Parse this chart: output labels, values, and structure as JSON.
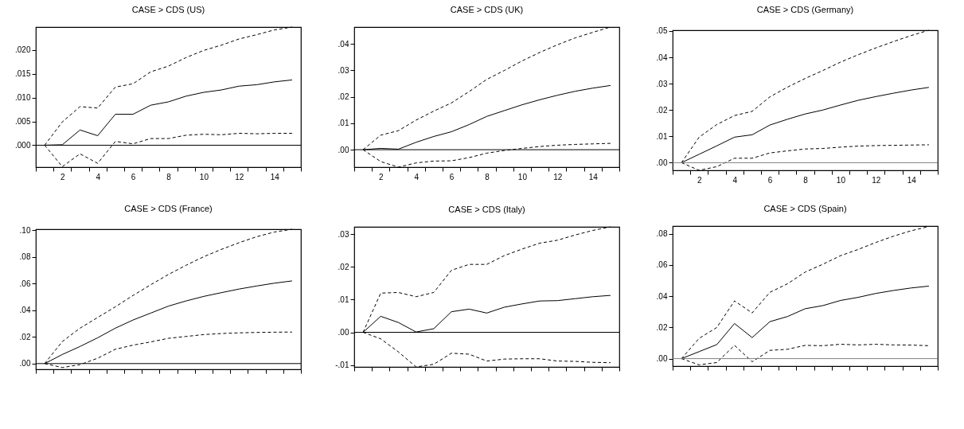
{
  "chart_data": [
    {
      "type": "line",
      "title": "CASE > CDS (US)",
      "x": [
        1,
        2,
        3,
        4,
        5,
        6,
        7,
        8,
        9,
        10,
        11,
        12,
        13,
        14,
        15
      ],
      "xlim": [
        0.5,
        15.5
      ],
      "xticks": [
        {
          "value": 0.5,
          "label": null
        },
        {
          "value": 1.5,
          "label": null
        },
        2,
        {
          "value": 2.5,
          "label": null
        },
        {
          "value": 3.5,
          "label": null
        },
        4,
        {
          "value": 4.5,
          "label": null
        },
        {
          "value": 5.5,
          "label": null
        },
        6,
        {
          "value": 6.5,
          "label": null
        },
        {
          "value": 7.5,
          "label": null
        },
        8,
        {
          "value": 8.5,
          "label": null
        },
        {
          "value": 9.5,
          "label": null
        },
        10,
        {
          "value": 10.5,
          "label": null
        },
        {
          "value": 11.5,
          "label": null
        },
        12,
        {
          "value": 12.5,
          "label": null
        },
        {
          "value": 13.5,
          "label": null
        },
        14,
        {
          "value": 14.5,
          "label": null
        },
        {
          "value": 15.5,
          "label": null
        }
      ],
      "ylim": [
        -0.0046,
        0.0248
      ],
      "yticks": [
        {
          "value": 0,
          "label": ".000"
        },
        {
          "value": 0.005,
          "label": ".005"
        },
        {
          "value": 0.01,
          "label": ".010"
        },
        {
          "value": 0.015,
          "label": ".015"
        },
        {
          "value": 0.02,
          "label": ".020"
        }
      ],
      "grid": false,
      "legend": false,
      "ref_lines": [
        {
          "axis": "y",
          "value": 0,
          "color": "#000000"
        }
      ],
      "series": [
        {
          "color": "#000000",
          "line_style": "solid",
          "values": [
            0,
            0.0001,
            0.0032,
            0.002,
            0.0065,
            0.0065,
            0.0084,
            0.0091,
            0.0103,
            0.0111,
            0.0116,
            0.0124,
            0.0127,
            0.0133,
            0.0137
          ]
        },
        {
          "color": "#000000",
          "line_style": "dashed",
          "values": [
            0,
            0.0049,
            0.0081,
            0.0078,
            0.0122,
            0.0129,
            0.0154,
            0.0166,
            0.0184,
            0.0199,
            0.021,
            0.0223,
            0.0232,
            0.0242,
            0.0248
          ]
        },
        {
          "color": "#000000",
          "line_style": "dashed",
          "values": [
            0,
            -0.0045,
            -0.0018,
            -0.0038,
            0.0008,
            0.0003,
            0.0014,
            0.0014,
            0.0021,
            0.0023,
            0.0022,
            0.0025,
            0.0024,
            0.0025,
            0.0025
          ]
        }
      ]
    },
    {
      "type": "line",
      "title": "CASE > CDS (UK)",
      "x": [
        1,
        2,
        3,
        4,
        5,
        6,
        7,
        8,
        9,
        10,
        11,
        12,
        13,
        14,
        15
      ],
      "xlim": [
        0.5,
        15.5
      ],
      "xticks": [
        {
          "value": 0.5,
          "label": null
        },
        {
          "value": 1.5,
          "label": null
        },
        2,
        {
          "value": 2.5,
          "label": null
        },
        {
          "value": 3.5,
          "label": null
        },
        4,
        {
          "value": 4.5,
          "label": null
        },
        {
          "value": 5.5,
          "label": null
        },
        6,
        {
          "value": 6.5,
          "label": null
        },
        {
          "value": 7.5,
          "label": null
        },
        8,
        {
          "value": 8.5,
          "label": null
        },
        {
          "value": 9.5,
          "label": null
        },
        10,
        {
          "value": 10.5,
          "label": null
        },
        {
          "value": 11.5,
          "label": null
        },
        12,
        {
          "value": 12.5,
          "label": null
        },
        {
          "value": 13.5,
          "label": null
        },
        14,
        {
          "value": 14.5,
          "label": null
        },
        {
          "value": 15.5,
          "label": null
        }
      ],
      "ylim": [
        -0.0066,
        0.0464
      ],
      "yticks": [
        {
          "value": 0,
          "label": ".00"
        },
        {
          "value": 0.01,
          "label": ".01"
        },
        {
          "value": 0.02,
          "label": ".02"
        },
        {
          "value": 0.03,
          "label": ".03"
        },
        {
          "value": 0.04,
          "label": ".04"
        }
      ],
      "grid": false,
      "legend": false,
      "ref_lines": [
        {
          "axis": "y",
          "value": 0,
          "color": "#000000"
        }
      ],
      "series": [
        {
          "color": "#000000",
          "line_style": "solid",
          "values": [
            0,
            0.0005,
            0.0002,
            0.0028,
            0.005,
            0.0068,
            0.0095,
            0.0126,
            0.0148,
            0.017,
            0.0189,
            0.0206,
            0.0221,
            0.0233,
            0.0243
          ]
        },
        {
          "color": "#000000",
          "line_style": "dashed",
          "values": [
            0,
            0.0055,
            0.0072,
            0.0112,
            0.0146,
            0.0177,
            0.022,
            0.0266,
            0.03,
            0.0336,
            0.0368,
            0.0397,
            0.0423,
            0.0444,
            0.0464
          ]
        },
        {
          "color": "#000000",
          "line_style": "dashed",
          "values": [
            0,
            -0.0045,
            -0.0066,
            -0.005,
            -0.0043,
            -0.0042,
            -0.003,
            -0.0013,
            -0.0003,
            0.0005,
            0.0012,
            0.0017,
            0.002,
            0.0022,
            0.0024
          ]
        }
      ]
    },
    {
      "type": "line",
      "title": "CASE > CDS (Germany)",
      "x": [
        1,
        2,
        3,
        4,
        5,
        6,
        7,
        8,
        9,
        10,
        11,
        12,
        13,
        14,
        15
      ],
      "xlim": [
        0.5,
        15.5
      ],
      "xticks": [
        {
          "value": 0.5,
          "label": null
        },
        {
          "value": 1.5,
          "label": null
        },
        2,
        {
          "value": 2.5,
          "label": null
        },
        {
          "value": 3.5,
          "label": null
        },
        4,
        {
          "value": 4.5,
          "label": null
        },
        {
          "value": 5.5,
          "label": null
        },
        6,
        {
          "value": 6.5,
          "label": null
        },
        {
          "value": 7.5,
          "label": null
        },
        8,
        {
          "value": 8.5,
          "label": null
        },
        {
          "value": 9.5,
          "label": null
        },
        10,
        {
          "value": 10.5,
          "label": null
        },
        {
          "value": 11.5,
          "label": null
        },
        12,
        {
          "value": 12.5,
          "label": null
        },
        {
          "value": 13.5,
          "label": null
        },
        14,
        {
          "value": 14.5,
          "label": null
        },
        {
          "value": 15.5,
          "label": null
        }
      ],
      "ylim": [
        -0.0029,
        0.0503
      ],
      "yticks": [
        {
          "value": 0,
          "label": ".00"
        },
        {
          "value": 0.01,
          "label": ".01"
        },
        {
          "value": 0.02,
          "label": ".02"
        },
        {
          "value": 0.03,
          "label": ".03"
        },
        {
          "value": 0.04,
          "label": ".04"
        },
        {
          "value": 0.05,
          "label": ".05"
        }
      ],
      "grid": false,
      "legend": false,
      "ref_lines": [
        {
          "axis": "y",
          "value": 0,
          "color": "#808080"
        }
      ],
      "series": [
        {
          "color": "#000000",
          "line_style": "solid",
          "values": [
            0,
            0.0032,
            0.0064,
            0.0097,
            0.0106,
            0.0143,
            0.0165,
            0.0185,
            0.02,
            0.0219,
            0.0237,
            0.0251,
            0.0264,
            0.0276,
            0.0286
          ]
        },
        {
          "color": "#000000",
          "line_style": "dashed",
          "values": [
            0,
            0.0097,
            0.0145,
            0.0179,
            0.0195,
            0.025,
            0.0287,
            0.032,
            0.035,
            0.0382,
            0.041,
            0.0436,
            0.046,
            0.0483,
            0.0503
          ]
        },
        {
          "color": "#000000",
          "line_style": "dashed",
          "values": [
            0,
            -0.0029,
            -0.0015,
            0.0017,
            0.0017,
            0.0037,
            0.0045,
            0.0052,
            0.0054,
            0.0059,
            0.0063,
            0.0065,
            0.0066,
            0.0067,
            0.0068
          ]
        }
      ]
    },
    {
      "type": "line",
      "title": "CASE > CDS (France)",
      "x": [
        1,
        2,
        3,
        4,
        5,
        6,
        7,
        8,
        9,
        10,
        11,
        12,
        13,
        14,
        15
      ],
      "xlim": [
        0.5,
        15.5
      ],
      "xticks": [
        {
          "value": 0.5,
          "label": null
        },
        {
          "value": 1.5,
          "label": null
        },
        {
          "value": 2.5,
          "label": null
        },
        {
          "value": 3.5,
          "label": null
        },
        {
          "value": 4.5,
          "label": null
        },
        {
          "value": 5.5,
          "label": null
        },
        {
          "value": 6.5,
          "label": null
        },
        {
          "value": 7.5,
          "label": null
        },
        {
          "value": 8.5,
          "label": null
        },
        {
          "value": 9.5,
          "label": null
        },
        {
          "value": 10.5,
          "label": null
        },
        {
          "value": 11.5,
          "label": null
        },
        {
          "value": 12.5,
          "label": null
        },
        {
          "value": 13.5,
          "label": null
        },
        {
          "value": 14.5,
          "label": null
        },
        {
          "value": 15.5,
          "label": null
        }
      ],
      "tick_labels": "y",
      "ylim": [
        -0.0043,
        0.1006
      ],
      "yticks": [
        {
          "value": 0,
          "label": ".00"
        },
        {
          "value": 0.02,
          "label": ".02"
        },
        {
          "value": 0.04,
          "label": ".04"
        },
        {
          "value": 0.06,
          "label": ".06"
        },
        {
          "value": 0.08,
          "label": ".08"
        },
        {
          "value": 0.1,
          "label": ".10"
        }
      ],
      "grid": false,
      "legend": false,
      "ref_lines": [
        {
          "axis": "y",
          "value": 0,
          "color": "#000000"
        }
      ],
      "series": [
        {
          "color": "#000000",
          "line_style": "solid",
          "values": [
            0,
            0.0068,
            0.0128,
            0.0193,
            0.0265,
            0.0326,
            0.0378,
            0.043,
            0.0469,
            0.0503,
            0.0531,
            0.0558,
            0.0581,
            0.0602,
            0.0619
          ]
        },
        {
          "color": "#000000",
          "line_style": "dashed",
          "values": [
            0,
            0.0165,
            0.0265,
            0.0345,
            0.0425,
            0.051,
            0.059,
            0.0667,
            0.0736,
            0.08,
            0.0855,
            0.0905,
            0.095,
            0.0985,
            0.1006
          ]
        },
        {
          "color": "#000000",
          "line_style": "dashed",
          "values": [
            0,
            -0.003,
            -0.0008,
            0.004,
            0.0107,
            0.0138,
            0.0162,
            0.0189,
            0.0203,
            0.0217,
            0.0225,
            0.023,
            0.0233,
            0.0235,
            0.0236
          ]
        }
      ]
    },
    {
      "type": "line",
      "title": "CASE > CDS (Italy)",
      "x": [
        1,
        2,
        3,
        4,
        5,
        6,
        7,
        8,
        9,
        10,
        11,
        12,
        13,
        14,
        15
      ],
      "xlim": [
        0.5,
        15.5
      ],
      "xticks": [
        {
          "value": 0.5,
          "label": null
        },
        {
          "value": 1.5,
          "label": null
        },
        {
          "value": 2.5,
          "label": null
        },
        {
          "value": 3.5,
          "label": null
        },
        {
          "value": 4.5,
          "label": null
        },
        {
          "value": 5.5,
          "label": null
        },
        {
          "value": 6.5,
          "label": null
        },
        {
          "value": 7.5,
          "label": null
        },
        {
          "value": 8.5,
          "label": null
        },
        {
          "value": 9.5,
          "label": null
        },
        {
          "value": 10.5,
          "label": null
        },
        {
          "value": 11.5,
          "label": null
        },
        {
          "value": 12.5,
          "label": null
        },
        {
          "value": 13.5,
          "label": null
        },
        {
          "value": 14.5,
          "label": null
        },
        {
          "value": 15.5,
          "label": null
        }
      ],
      "tick_labels": "y",
      "ylim": [
        -0.0106,
        0.0323
      ],
      "yticks": [
        {
          "value": -0.01,
          "label": "-.01"
        },
        {
          "value": 0,
          "label": ".00"
        },
        {
          "value": 0.01,
          "label": ".01"
        },
        {
          "value": 0.02,
          "label": ".02"
        },
        {
          "value": 0.03,
          "label": ".03"
        }
      ],
      "grid": false,
      "legend": false,
      "ref_lines": [
        {
          "axis": "y",
          "value": 0,
          "color": "#000000"
        }
      ],
      "series": [
        {
          "color": "#000000",
          "line_style": "solid",
          "values": [
            0,
            0.0049,
            0.003,
            0.0001,
            0.0011,
            0.0063,
            0.0071,
            0.0059,
            0.0077,
            0.0087,
            0.0096,
            0.0097,
            0.0103,
            0.0109,
            0.0113
          ]
        },
        {
          "color": "#000000",
          "line_style": "dashed",
          "values": [
            0,
            0.012,
            0.0122,
            0.0109,
            0.0122,
            0.019,
            0.0208,
            0.0208,
            0.0235,
            0.0255,
            0.0273,
            0.0282,
            0.0298,
            0.0312,
            0.0323
          ]
        },
        {
          "color": "#000000",
          "line_style": "dashed",
          "values": [
            0,
            -0.002,
            -0.006,
            -0.0106,
            -0.0098,
            -0.0064,
            -0.0067,
            -0.0088,
            -0.0082,
            -0.0081,
            -0.0081,
            -0.0088,
            -0.0089,
            -0.0092,
            -0.0093
          ]
        }
      ]
    },
    {
      "type": "line",
      "title": "CASE > CDS (Spain)",
      "x": [
        1,
        2,
        3,
        4,
        5,
        6,
        7,
        8,
        9,
        10,
        11,
        12,
        13,
        14,
        15
      ],
      "xlim": [
        0.5,
        15.5
      ],
      "xticks": [
        {
          "value": 0.5,
          "label": null
        },
        {
          "value": 1.5,
          "label": null
        },
        {
          "value": 2.5,
          "label": null
        },
        {
          "value": 3.5,
          "label": null
        },
        {
          "value": 4.5,
          "label": null
        },
        {
          "value": 5.5,
          "label": null
        },
        {
          "value": 6.5,
          "label": null
        },
        {
          "value": 7.5,
          "label": null
        },
        {
          "value": 8.5,
          "label": null
        },
        {
          "value": 9.5,
          "label": null
        },
        {
          "value": 10.5,
          "label": null
        },
        {
          "value": 11.5,
          "label": null
        },
        {
          "value": 12.5,
          "label": null
        },
        {
          "value": 13.5,
          "label": null
        },
        {
          "value": 14.5,
          "label": null
        },
        {
          "value": 15.5,
          "label": null
        }
      ],
      "tick_labels": "y",
      "ylim": [
        -0.0048,
        0.085
      ],
      "yticks": [
        {
          "value": 0,
          "label": ".00"
        },
        {
          "value": 0.02,
          "label": ".02"
        },
        {
          "value": 0.04,
          "label": ".04"
        },
        {
          "value": 0.06,
          "label": ".06"
        },
        {
          "value": 0.08,
          "label": ".08"
        }
      ],
      "grid": false,
      "legend": false,
      "ref_lines": [
        {
          "axis": "y",
          "value": 0,
          "color": "#808080"
        }
      ],
      "series": [
        {
          "color": "#000000",
          "line_style": "solid",
          "values": [
            0,
            0.0045,
            0.009,
            0.0225,
            0.0135,
            0.0237,
            0.027,
            0.032,
            0.034,
            0.0373,
            0.0393,
            0.0418,
            0.0437,
            0.0453,
            0.0465
          ]
        },
        {
          "color": "#000000",
          "line_style": "dashed",
          "values": [
            0,
            0.013,
            0.02,
            0.037,
            0.0293,
            0.0425,
            0.048,
            0.0555,
            0.0605,
            0.066,
            0.07,
            0.0745,
            0.0785,
            0.082,
            0.0847
          ]
        },
        {
          "color": "#000000",
          "line_style": "dashed",
          "values": [
            0,
            -0.004,
            -0.0025,
            0.0085,
            -0.002,
            0.0053,
            0.006,
            0.0085,
            0.0083,
            0.0092,
            0.0088,
            0.0092,
            0.0088,
            0.0087,
            0.0083
          ]
        }
      ]
    }
  ]
}
